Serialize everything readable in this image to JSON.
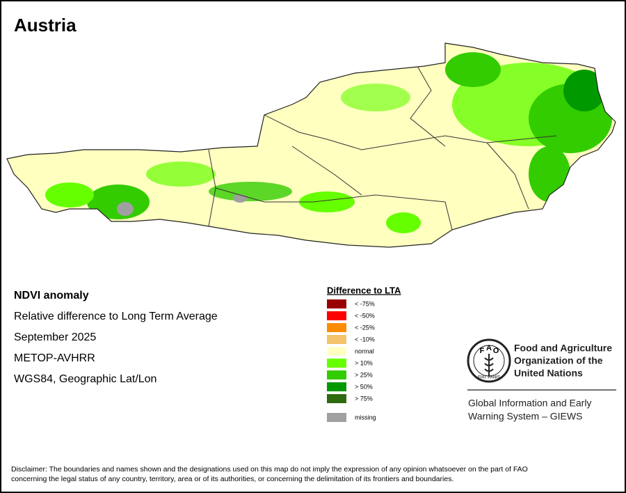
{
  "title": "Austria",
  "info": [
    "NDVI anomaly",
    "Relative difference to Long Term Average",
    "September 2025",
    "METOP-AVHRR",
    "WGS84, Geographic Lat/Lon"
  ],
  "legend": {
    "title": "Difference to LTA",
    "items": [
      {
        "label": "< -75%",
        "color": "#990000"
      },
      {
        "label": "< -50%",
        "color": "#ff0000"
      },
      {
        "label": "< -25%",
        "color": "#ff8c00"
      },
      {
        "label": "< -10%",
        "color": "#f5c36b"
      },
      {
        "label": "normal",
        "color": "#ffffc0"
      },
      {
        "label": "> 10%",
        "color": "#66ff00"
      },
      {
        "label": "> 25%",
        "color": "#33cc00"
      },
      {
        "label": "> 50%",
        "color": "#009900"
      },
      {
        "label": "> 75%",
        "color": "#2e6b0f"
      }
    ],
    "missing": {
      "label": "missing",
      "color": "#a0a0a0"
    }
  },
  "logo": {
    "letters": [
      "F",
      "A",
      "O"
    ],
    "motto": "FIAT PANIS"
  },
  "organization": [
    "Food and Agriculture",
    "Organization of the",
    "United Nations"
  ],
  "program": [
    "Global Information and Early",
    "Warning System – GIEWS"
  ],
  "disclaimer": [
    "Disclaimer: The boundaries and names shown and the designations used on this map do not imply the expression of any opinion whatsoever on the part of FAO",
    "concerning the legal status of any country, territory, area or of its authorities, or concerning the delimitation of its frontiers and boundaries."
  ]
}
